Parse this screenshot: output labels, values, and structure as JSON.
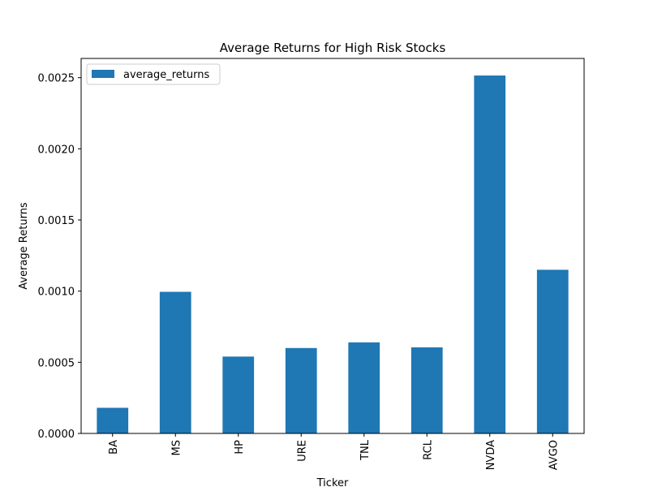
{
  "chart_data": {
    "type": "bar",
    "title": "Average Returns for High Risk Stocks",
    "xlabel": "Ticker",
    "ylabel": "Average Returns",
    "categories": [
      "BA",
      "MS",
      "HP",
      "URE",
      "TNL",
      "RCL",
      "NVDA",
      "AVGO"
    ],
    "series": [
      {
        "name": "average_returns",
        "color": "#1f77b4",
        "values": [
          0.00018,
          0.000995,
          0.00054,
          0.0006,
          0.00064,
          0.000605,
          0.002515,
          0.00115
        ]
      }
    ],
    "ylim": [
      0,
      0.002635
    ],
    "yticks": [
      {
        "value": 0,
        "label": "0.0000"
      },
      {
        "value": 0.0005,
        "label": "0.0005"
      },
      {
        "value": 0.001,
        "label": "0.0010"
      },
      {
        "value": 0.0015,
        "label": "0.0015"
      },
      {
        "value": 0.002,
        "label": "0.0020"
      },
      {
        "value": 0.0025,
        "label": "0.0025"
      }
    ],
    "grid": false,
    "legend_position": "top-left"
  }
}
